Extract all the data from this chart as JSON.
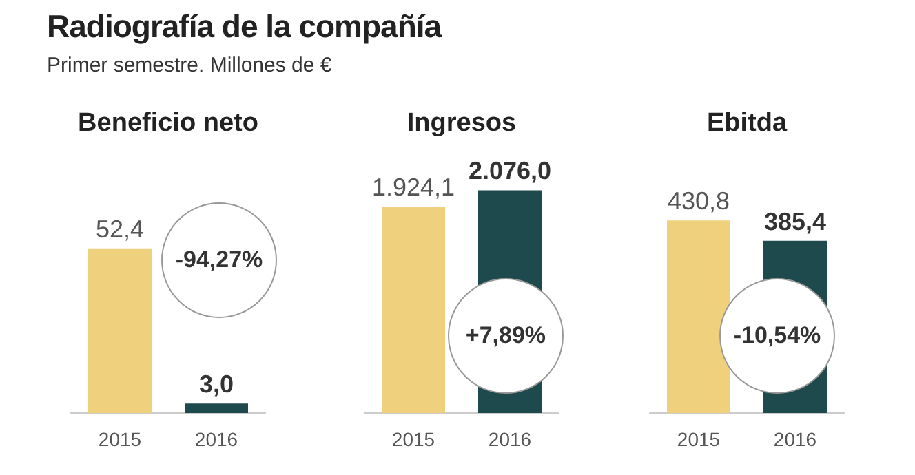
{
  "chart_data": [
    {
      "type": "other",
      "title": "Radiografía de la compañía",
      "subtitle": "Primer semestre. Millones de €"
    },
    {
      "type": "bar",
      "title": "Beneficio neto",
      "categories": [
        "2015",
        "2016"
      ],
      "values": [
        52.4,
        3.0
      ],
      "colors": [
        "#efd07c",
        "#1f4a4d"
      ],
      "value_labels": [
        "52,4",
        "3,0"
      ],
      "annotations": [
        "-94,27%"
      ]
    },
    {
      "type": "bar",
      "title": "Ingresos",
      "categories": [
        "2015",
        "2016"
      ],
      "values": [
        1924.1,
        2076.0
      ],
      "colors": [
        "#efd07c",
        "#1f4a4d"
      ],
      "value_labels": [
        "1.924,1",
        "2.076,0"
      ],
      "annotations": [
        "+7,89%"
      ]
    },
    {
      "type": "bar",
      "title": "Ebitda",
      "categories": [
        "2015",
        "2016"
      ],
      "values": [
        430.8,
        385.4
      ],
      "colors": [
        "#efd07c",
        "#1f4a4d"
      ],
      "value_labels": [
        "430,8",
        "385,4"
      ],
      "annotations": [
        "-10,54%"
      ]
    }
  ]
}
